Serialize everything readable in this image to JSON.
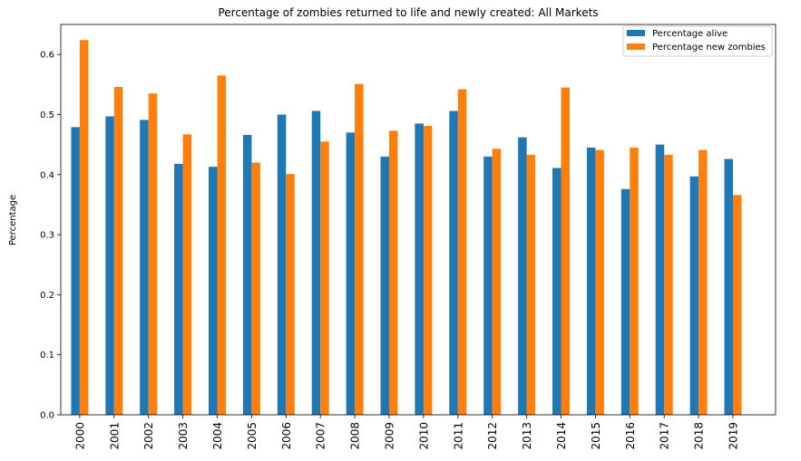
{
  "chart_data": {
    "type": "bar",
    "title": "Percentage of zombies returned to life and newly created: All Markets",
    "xlabel": "",
    "ylabel": "Percentage",
    "categories": [
      "2000",
      "2001",
      "2002",
      "2003",
      "2004",
      "2005",
      "2006",
      "2007",
      "2008",
      "2009",
      "2010",
      "2011",
      "2012",
      "2013",
      "2014",
      "2015",
      "2016",
      "2017",
      "2018",
      "2019"
    ],
    "series": [
      {
        "name": "Percentage alive",
        "color": "#1f77b4",
        "values": [
          0.479,
          0.497,
          0.491,
          0.418,
          0.413,
          0.466,
          0.5,
          0.506,
          0.47,
          0.43,
          0.485,
          0.506,
          0.43,
          0.462,
          0.411,
          0.445,
          0.376,
          0.45,
          0.397,
          0.426
        ]
      },
      {
        "name": "Percentage new zombies",
        "color": "#ff7f0e",
        "values": [
          0.624,
          0.546,
          0.535,
          0.467,
          0.565,
          0.42,
          0.401,
          0.455,
          0.551,
          0.473,
          0.481,
          0.542,
          0.443,
          0.433,
          0.545,
          0.441,
          0.445,
          0.433,
          0.441,
          0.366
        ]
      }
    ],
    "ylim": [
      0,
      0.65
    ],
    "yticks": [
      "0.0",
      "0.1",
      "0.2",
      "0.3",
      "0.4",
      "0.5",
      "0.6"
    ],
    "ytick_values": [
      0.0,
      0.1,
      0.2,
      0.3,
      0.4,
      0.5,
      0.6
    ],
    "grid": false,
    "legend_position": "upper-right"
  }
}
